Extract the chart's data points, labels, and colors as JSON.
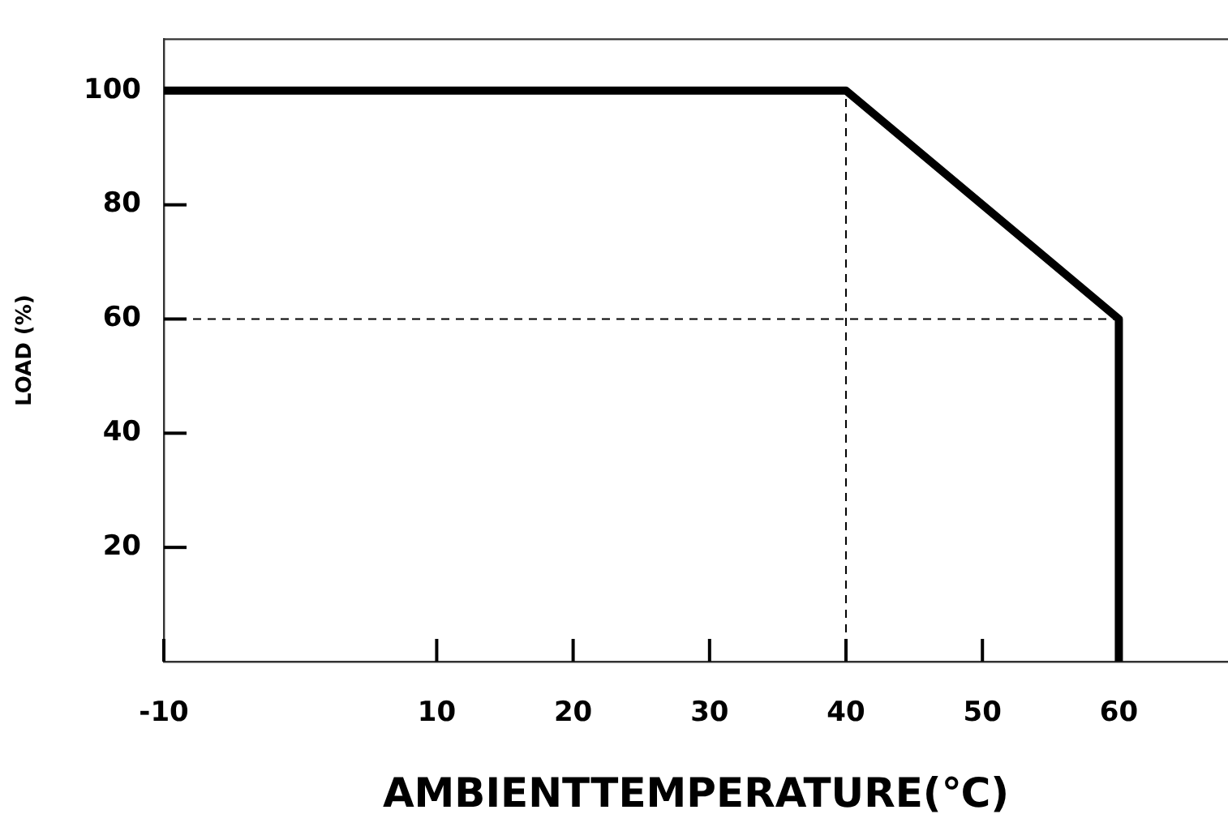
{
  "chart_data": {
    "type": "line",
    "xlabel": "AMBIENTTEMPERATURE(℃)",
    "ylabel": "LOAD (%)",
    "xlim": [
      -10,
      68
    ],
    "xticks": [
      -10,
      10,
      20,
      30,
      40,
      50,
      60
    ],
    "ylim": [
      0,
      109
    ],
    "yticks": [
      20,
      40,
      60,
      80,
      100
    ],
    "grid": false,
    "legend": false,
    "marker": "none",
    "series": [
      {
        "color": "#000000",
        "x": [
          -10,
          40,
          60,
          60
        ],
        "values": [
          100,
          100,
          60,
          0
        ],
        "line_style": "solid"
      },
      {
        "color": "#000000",
        "x": [
          40,
          40
        ],
        "values": [
          0,
          100
        ],
        "line_style": "dashed"
      },
      {
        "color": "#000000",
        "x": [
          -10,
          60
        ],
        "values": [
          60,
          60
        ],
        "line_style": "dashed"
      }
    ]
  }
}
